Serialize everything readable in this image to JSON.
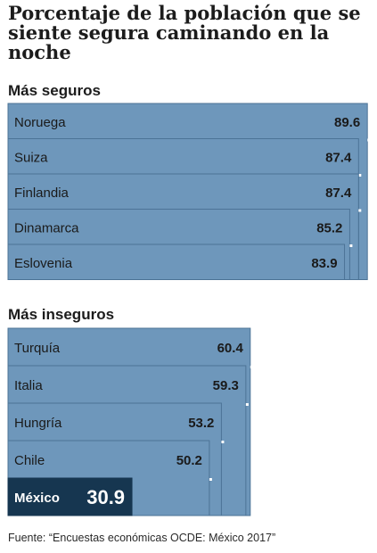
{
  "title": "Porcentaje de la población que se siente segura caminando en la noche",
  "source": "Fuente: “Encuestas económicas OCDE: México 2017”",
  "colors": {
    "bar": "#6e97bb",
    "bar_border": "#4c7396",
    "shadow": "#ffffff",
    "highlight": "#163650",
    "text": "#1a1a1a",
    "highlight_text": "#ffffff"
  },
  "chart_data": {
    "type": "bar",
    "orientation": "horizontal",
    "groups": [
      {
        "label": "Más seguros",
        "categories": [
          "Noruega",
          "Suiza",
          "Finlandia",
          "Dinamarca",
          "Eslovenia"
        ],
        "values": [
          89.6,
          87.4,
          87.4,
          85.2,
          83.9
        ]
      },
      {
        "label": "Más inseguros",
        "categories": [
          "Turquía",
          "Italia",
          "Hungría",
          "Chile",
          "México"
        ],
        "values": [
          60.4,
          59.3,
          53.2,
          50.2,
          30.9
        ],
        "highlight": "México"
      }
    ]
  }
}
